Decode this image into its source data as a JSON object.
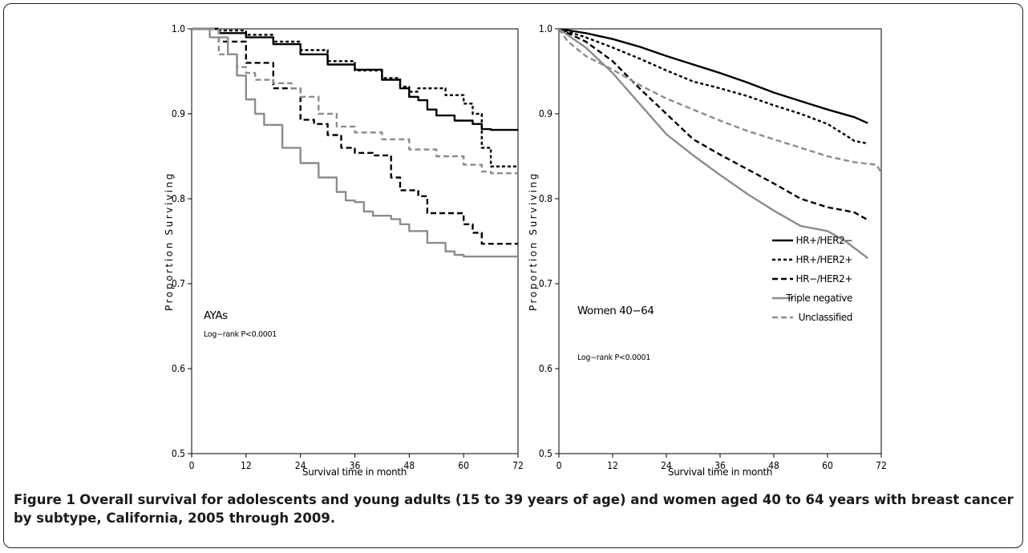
{
  "figure": {
    "caption_label": "Figure 1",
    "caption_text": "Overall survival for adolescents and young adults (15 to 39 years of age) and women aged 40 to 64 years with breast cancer by subtype, California, 2005 through 2009."
  },
  "legend": {
    "items": [
      {
        "label": "HR+/HER2−",
        "color": "#000000",
        "dash": "solid"
      },
      {
        "label": "HR+/HER2+",
        "color": "#000000",
        "dash": "short"
      },
      {
        "label": "HR−/HER2+",
        "color": "#000000",
        "dash": "long"
      },
      {
        "label": "Triple negative",
        "color": "#8c8c8c",
        "dash": "solid"
      },
      {
        "label": "Unclassified",
        "color": "#8c8c8c",
        "dash": "long"
      }
    ]
  },
  "chart_data": [
    {
      "type": "line",
      "panel_label": "AYAs",
      "annotation": "Log−rank P<0.0001",
      "xlabel": "Survival time in month",
      "ylabel": "Proportion Surviving",
      "xlim": [
        0,
        72
      ],
      "ylim": [
        0.5,
        1.0
      ],
      "xticks": [
        0,
        12,
        24,
        36,
        48,
        60,
        72
      ],
      "yticks": [
        0.5,
        0.6,
        0.7,
        0.8,
        0.9,
        1.0
      ],
      "ytick_labels": [
        "0.5",
        "0.6",
        "0.7",
        "0.8",
        "0.9",
        "1.0"
      ],
      "step": true,
      "series": [
        {
          "name": "HR+/HER2−",
          "x": [
            0,
            6,
            12,
            18,
            24,
            30,
            36,
            42,
            46,
            48,
            50,
            52,
            54,
            58,
            62,
            64,
            66,
            72
          ],
          "y": [
            1.0,
            0.995,
            0.99,
            0.982,
            0.97,
            0.958,
            0.952,
            0.94,
            0.93,
            0.92,
            0.916,
            0.905,
            0.898,
            0.892,
            0.888,
            0.882,
            0.881,
            0.881
          ]
        },
        {
          "name": "HR+/HER2+",
          "x": [
            0,
            6,
            12,
            18,
            24,
            30,
            36,
            42,
            46,
            48,
            50,
            56,
            60,
            62,
            64,
            66,
            68,
            72
          ],
          "y": [
            1.0,
            0.998,
            0.993,
            0.985,
            0.975,
            0.962,
            0.951,
            0.942,
            0.932,
            0.926,
            0.93,
            0.922,
            0.912,
            0.9,
            0.86,
            0.838,
            0.838,
            0.838
          ]
        },
        {
          "name": "HR−/HER2+",
          "x": [
            0,
            6,
            12,
            18,
            24,
            27,
            30,
            33,
            36,
            40,
            44,
            46,
            50,
            52,
            56,
            60,
            62,
            64,
            66,
            72
          ],
          "y": [
            1.0,
            0.985,
            0.96,
            0.93,
            0.893,
            0.888,
            0.875,
            0.86,
            0.854,
            0.851,
            0.825,
            0.81,
            0.803,
            0.783,
            0.783,
            0.77,
            0.76,
            0.747,
            0.747,
            0.747
          ]
        },
        {
          "name": "Triple negative",
          "x": [
            0,
            4,
            8,
            10,
            12,
            14,
            16,
            20,
            24,
            28,
            32,
            34,
            36,
            38,
            40,
            44,
            46,
            48,
            52,
            56,
            58,
            60,
            66,
            72
          ],
          "y": [
            1.0,
            0.99,
            0.97,
            0.945,
            0.917,
            0.9,
            0.887,
            0.86,
            0.842,
            0.825,
            0.808,
            0.798,
            0.796,
            0.785,
            0.78,
            0.776,
            0.77,
            0.762,
            0.748,
            0.738,
            0.734,
            0.732,
            0.732,
            0.732
          ]
        },
        {
          "name": "Unclassified",
          "x": [
            0,
            6,
            10,
            12,
            14,
            18,
            22,
            24,
            28,
            32,
            36,
            42,
            48,
            54,
            60,
            64,
            66,
            72
          ],
          "y": [
            1.0,
            0.97,
            0.955,
            0.948,
            0.94,
            0.936,
            0.93,
            0.92,
            0.9,
            0.885,
            0.878,
            0.87,
            0.858,
            0.85,
            0.84,
            0.832,
            0.83,
            0.83
          ]
        }
      ]
    },
    {
      "type": "line",
      "panel_label": "Women 40−64",
      "annotation": "Log−rank P<0.0001",
      "xlabel": "Survival time in month",
      "ylabel": "Proportion Surviving",
      "xlim": [
        0,
        72
      ],
      "ylim": [
        0.5,
        1.0
      ],
      "xticks": [
        0,
        12,
        24,
        36,
        48,
        60,
        72
      ],
      "yticks": [
        0.5,
        0.6,
        0.7,
        0.8,
        0.9,
        1.0
      ],
      "ytick_labels": [
        "0.5",
        "0.6",
        "0.7",
        "0.8",
        "0.9",
        "1.0"
      ],
      "step": false,
      "series": [
        {
          "name": "HR+/HER2−",
          "x": [
            0,
            6,
            12,
            18,
            24,
            30,
            36,
            42,
            48,
            54,
            60,
            66,
            69
          ],
          "y": [
            1.0,
            0.995,
            0.988,
            0.979,
            0.968,
            0.958,
            0.948,
            0.937,
            0.925,
            0.915,
            0.905,
            0.896,
            0.889
          ]
        },
        {
          "name": "HR+/HER2+",
          "x": [
            0,
            6,
            12,
            18,
            24,
            30,
            36,
            42,
            48,
            54,
            60,
            64,
            66,
            69
          ],
          "y": [
            1.0,
            0.99,
            0.978,
            0.965,
            0.951,
            0.938,
            0.93,
            0.921,
            0.91,
            0.9,
            0.888,
            0.875,
            0.868,
            0.865
          ]
        },
        {
          "name": "HR−/HER2+",
          "x": [
            0,
            6,
            12,
            18,
            24,
            30,
            36,
            42,
            48,
            54,
            60,
            64,
            66,
            69
          ],
          "y": [
            1.0,
            0.985,
            0.962,
            0.93,
            0.9,
            0.87,
            0.852,
            0.835,
            0.818,
            0.8,
            0.79,
            0.786,
            0.784,
            0.775
          ]
        },
        {
          "name": "Triple negative",
          "x": [
            0,
            6,
            12,
            18,
            24,
            30,
            36,
            42,
            48,
            54,
            60,
            64,
            66,
            69
          ],
          "y": [
            1.0,
            0.978,
            0.948,
            0.912,
            0.876,
            0.851,
            0.828,
            0.806,
            0.786,
            0.768,
            0.762,
            0.75,
            0.742,
            0.73
          ]
        },
        {
          "name": "Unclassified",
          "x": [
            0,
            2,
            6,
            12,
            18,
            24,
            30,
            36,
            42,
            48,
            54,
            60,
            66,
            71,
            72
          ],
          "y": [
            1.0,
            0.985,
            0.968,
            0.952,
            0.934,
            0.918,
            0.905,
            0.892,
            0.88,
            0.87,
            0.86,
            0.85,
            0.843,
            0.84,
            0.83
          ]
        }
      ]
    }
  ]
}
